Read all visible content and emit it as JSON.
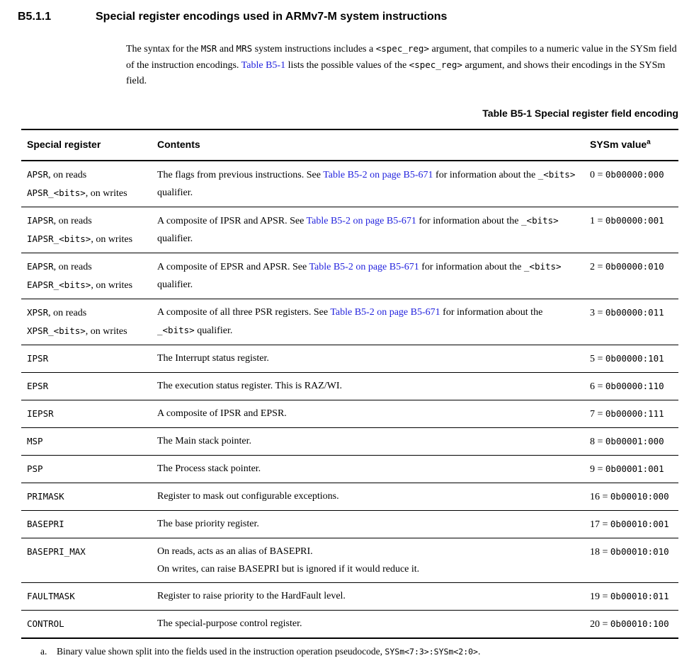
{
  "colors": {
    "link": "#2222dd",
    "text": "#000000",
    "background": "#ffffff"
  },
  "page": {
    "section_number": "B5.1.1",
    "section_title": "Special register encodings used in ARMv7-M system instructions",
    "intro_segments": [
      {
        "t": "The syntax for the "
      },
      {
        "t": "MSR",
        "s": "mono"
      },
      {
        "t": " and "
      },
      {
        "t": "MRS",
        "s": "mono"
      },
      {
        "t": " system instructions includes a "
      },
      {
        "t": "<spec_reg>",
        "s": "mono"
      },
      {
        "t": " argument, that compiles to a numeric value in the SYSm field of the instruction encodings. "
      },
      {
        "t": "Table B5-1",
        "s": "link"
      },
      {
        "t": " lists the possible values of the "
      },
      {
        "t": "<spec_reg>",
        "s": "mono"
      },
      {
        "t": " argument, and shows their encodings in the SYSm field."
      }
    ],
    "table_caption": "Table B5-1 Special register field encoding",
    "footnote": {
      "marker": "a.",
      "segments": [
        {
          "t": "Binary value shown split into the fields used in the instruction operation pseudocode, "
        },
        {
          "t": "SYSm<7:3>:SYSm<2:0>",
          "s": "mono"
        },
        {
          "t": "."
        }
      ]
    }
  },
  "table": {
    "headers": [
      {
        "label": "Special register"
      },
      {
        "label": "Contents"
      },
      {
        "label": "SYSm value",
        "footnote_ref": "a"
      }
    ],
    "rows": [
      {
        "register": [
          [
            {
              "t": "APSR",
              "s": "mono"
            },
            {
              "t": ", on reads"
            }
          ],
          [
            {
              "t": "APSR_<bits>",
              "s": "mono"
            },
            {
              "t": ", on writes"
            }
          ]
        ],
        "contents": [
          [
            {
              "t": "The flags from previous instructions. See "
            },
            {
              "t": "Table B5-2 on page B5-671",
              "s": "link"
            },
            {
              "t": " for information about the "
            },
            {
              "t": "_<bits>",
              "s": "mono"
            },
            {
              "t": " qualifier."
            }
          ]
        ],
        "sysm": [
          {
            "t": "0 = "
          },
          {
            "t": "0b00000:000",
            "s": "mono"
          }
        ]
      },
      {
        "register": [
          [
            {
              "t": "IAPSR",
              "s": "mono"
            },
            {
              "t": ", on reads"
            }
          ],
          [
            {
              "t": "IAPSR_<bits>",
              "s": "mono"
            },
            {
              "t": ", on writes"
            }
          ]
        ],
        "contents": [
          [
            {
              "t": "A composite of IPSR and APSR. See "
            },
            {
              "t": "Table B5-2 on page B5-671",
              "s": "link"
            },
            {
              "t": " for information about the "
            },
            {
              "t": "_<bits>",
              "s": "mono"
            },
            {
              "t": " qualifier."
            }
          ]
        ],
        "sysm": [
          {
            "t": "1 = "
          },
          {
            "t": "0b00000:001",
            "s": "mono"
          }
        ]
      },
      {
        "register": [
          [
            {
              "t": "EAPSR",
              "s": "mono"
            },
            {
              "t": ", on reads"
            }
          ],
          [
            {
              "t": "EAPSR_<bits>",
              "s": "mono"
            },
            {
              "t": ", on writes"
            }
          ]
        ],
        "contents": [
          [
            {
              "t": "A composite of EPSR and APSR. See "
            },
            {
              "t": "Table B5-2 on page B5-671",
              "s": "link"
            },
            {
              "t": " for information about the "
            },
            {
              "t": "_<bits>",
              "s": "mono"
            },
            {
              "t": " qualifier."
            }
          ]
        ],
        "sysm": [
          {
            "t": "2 = "
          },
          {
            "t": "0b00000:010",
            "s": "mono"
          }
        ]
      },
      {
        "register": [
          [
            {
              "t": "XPSR",
              "s": "mono"
            },
            {
              "t": ", on reads"
            }
          ],
          [
            {
              "t": "XPSR_<bits>",
              "s": "mono"
            },
            {
              "t": ", on writes"
            }
          ]
        ],
        "contents": [
          [
            {
              "t": "A composite of all three PSR registers. See "
            },
            {
              "t": "Table B5-2 on page B5-671",
              "s": "link"
            },
            {
              "t": " for information about the "
            },
            {
              "t": "_<bits>",
              "s": "mono"
            },
            {
              "t": " qualifier."
            }
          ]
        ],
        "sysm": [
          {
            "t": "3 = "
          },
          {
            "t": "0b00000:011",
            "s": "mono"
          }
        ]
      },
      {
        "register": [
          [
            {
              "t": "IPSR",
              "s": "mono"
            }
          ]
        ],
        "contents": [
          [
            {
              "t": "The Interrupt status register."
            }
          ]
        ],
        "sysm": [
          {
            "t": "5 = "
          },
          {
            "t": "0b00000:101",
            "s": "mono"
          }
        ]
      },
      {
        "register": [
          [
            {
              "t": "EPSR",
              "s": "mono"
            }
          ]
        ],
        "contents": [
          [
            {
              "t": "The execution status register. This is RAZ/WI."
            }
          ]
        ],
        "sysm": [
          {
            "t": "6 = "
          },
          {
            "t": "0b00000:110",
            "s": "mono"
          }
        ]
      },
      {
        "register": [
          [
            {
              "t": "IEPSR",
              "s": "mono"
            }
          ]
        ],
        "contents": [
          [
            {
              "t": "A composite of IPSR and EPSR."
            }
          ]
        ],
        "sysm": [
          {
            "t": "7 = "
          },
          {
            "t": "0b00000:111",
            "s": "mono"
          }
        ]
      },
      {
        "register": [
          [
            {
              "t": "MSP",
              "s": "mono"
            }
          ]
        ],
        "contents": [
          [
            {
              "t": "The Main stack pointer."
            }
          ]
        ],
        "sysm": [
          {
            "t": "8 = "
          },
          {
            "t": "0b00001:000",
            "s": "mono"
          }
        ]
      },
      {
        "register": [
          [
            {
              "t": "PSP",
              "s": "mono"
            }
          ]
        ],
        "contents": [
          [
            {
              "t": "The Process stack pointer."
            }
          ]
        ],
        "sysm": [
          {
            "t": "9 = "
          },
          {
            "t": "0b00001:001",
            "s": "mono"
          }
        ]
      },
      {
        "register": [
          [
            {
              "t": "PRIMASK",
              "s": "mono"
            }
          ]
        ],
        "contents": [
          [
            {
              "t": "Register to mask out configurable exceptions."
            }
          ]
        ],
        "sysm": [
          {
            "t": "16 = "
          },
          {
            "t": "0b00010:000",
            "s": "mono"
          }
        ]
      },
      {
        "register": [
          [
            {
              "t": "BASEPRI",
              "s": "mono"
            }
          ]
        ],
        "contents": [
          [
            {
              "t": "The base priority register."
            }
          ]
        ],
        "sysm": [
          {
            "t": "17 = "
          },
          {
            "t": "0b00010:001",
            "s": "mono"
          }
        ]
      },
      {
        "register": [
          [
            {
              "t": "BASEPRI_MAX",
              "s": "mono"
            }
          ]
        ],
        "contents": [
          [
            {
              "t": "On reads, acts as an alias of BASEPRI."
            }
          ],
          [
            {
              "t": "On writes, can raise BASEPRI but is ignored if it would reduce it."
            }
          ]
        ],
        "sysm": [
          {
            "t": "18 = "
          },
          {
            "t": "0b00010:010",
            "s": "mono"
          }
        ]
      },
      {
        "register": [
          [
            {
              "t": "FAULTMASK",
              "s": "mono"
            }
          ]
        ],
        "contents": [
          [
            {
              "t": "Register to raise priority to the HardFault level."
            }
          ]
        ],
        "sysm": [
          {
            "t": "19 = "
          },
          {
            "t": "0b00010:011",
            "s": "mono"
          }
        ]
      },
      {
        "register": [
          [
            {
              "t": "CONTROL",
              "s": "mono"
            }
          ]
        ],
        "contents": [
          [
            {
              "t": "The special-purpose control register."
            }
          ]
        ],
        "sysm": [
          {
            "t": "20 = "
          },
          {
            "t": "0b00010:100",
            "s": "mono"
          }
        ]
      }
    ]
  }
}
